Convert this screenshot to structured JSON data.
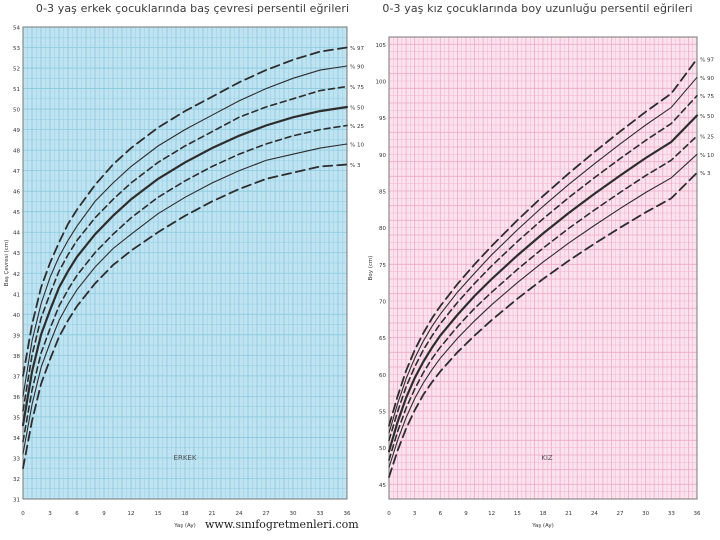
{
  "footer_url": "www.sınıfogretmenleri.com",
  "chart_data": [
    {
      "type": "line",
      "title": "0-3 yaş erkek çocuklarında baş çevresi persentil eğrileri",
      "xlabel": "Yaş (Ay)",
      "ylabel": "Baş Çevresi (cm)",
      "xlim": [
        0,
        36
      ],
      "ylim": [
        31,
        54
      ],
      "xticks": [
        0,
        3,
        6,
        9,
        12,
        15,
        18,
        21,
        24,
        27,
        30,
        33,
        36
      ],
      "yticks": [
        31,
        32,
        33,
        34,
        35,
        36,
        37,
        38,
        39,
        40,
        41,
        42,
        43,
        44,
        45,
        46,
        47,
        48,
        49,
        50,
        51,
        52,
        53,
        54
      ],
      "grid": true,
      "background": "#bfe3f1",
      "gridcolor": "#7dc3dd",
      "stamp": "ERKEK",
      "x": [
        0,
        1,
        2,
        3,
        4,
        5,
        6,
        8,
        10,
        12,
        15,
        18,
        21,
        24,
        27,
        30,
        33,
        36
      ],
      "series": [
        {
          "name": "% 97",
          "values": [
            37.0,
            39.5,
            41.3,
            42.5,
            43.5,
            44.4,
            45.1,
            46.3,
            47.3,
            48.1,
            49.1,
            49.9,
            50.6,
            51.3,
            51.9,
            52.4,
            52.8,
            53.0
          ]
        },
        {
          "name": "% 90",
          "values": [
            36.0,
            38.7,
            40.5,
            41.8,
            42.8,
            43.6,
            44.3,
            45.5,
            46.4,
            47.2,
            48.2,
            49.0,
            49.7,
            50.4,
            51.0,
            51.5,
            51.9,
            52.1
          ]
        },
        {
          "name": "% 75",
          "values": [
            35.3,
            38.0,
            39.8,
            41.0,
            42.1,
            42.9,
            43.6,
            44.7,
            45.6,
            46.4,
            47.4,
            48.2,
            48.9,
            49.6,
            50.1,
            50.5,
            50.9,
            51.1
          ]
        },
        {
          "name": "% 50",
          "values": [
            34.6,
            37.2,
            39.0,
            40.2,
            41.3,
            42.1,
            42.8,
            43.9,
            44.8,
            45.6,
            46.6,
            47.4,
            48.1,
            48.7,
            49.2,
            49.6,
            49.9,
            50.1
          ]
        },
        {
          "name": "% 25",
          "values": [
            33.8,
            36.3,
            38.1,
            39.3,
            40.4,
            41.2,
            41.9,
            43.0,
            43.9,
            44.7,
            45.7,
            46.5,
            47.2,
            47.8,
            48.3,
            48.7,
            49.0,
            49.2
          ]
        },
        {
          "name": "% 10",
          "values": [
            33.2,
            35.6,
            37.4,
            38.6,
            39.7,
            40.5,
            41.2,
            42.3,
            43.2,
            43.9,
            44.9,
            45.7,
            46.4,
            47.0,
            47.5,
            47.8,
            48.1,
            48.3
          ]
        },
        {
          "name": "% 3",
          "values": [
            32.5,
            34.8,
            36.6,
            37.8,
            38.9,
            39.7,
            40.4,
            41.5,
            42.4,
            43.1,
            44.0,
            44.8,
            45.5,
            46.1,
            46.6,
            46.9,
            47.2,
            47.3
          ]
        }
      ]
    },
    {
      "type": "line",
      "title": "0-3 yaş kız çocuklarında boy uzunluğu persentil eğrileri",
      "xlabel": "Yaş (Ay)",
      "ylabel": "Boy (cm)",
      "xlim": [
        0,
        36
      ],
      "ylim": [
        43,
        106
      ],
      "xticks": [
        0,
        3,
        6,
        9,
        12,
        15,
        18,
        21,
        24,
        27,
        30,
        33,
        36
      ],
      "yticks": [
        45,
        50,
        55,
        60,
        65,
        70,
        75,
        80,
        85,
        90,
        95,
        100,
        105
      ],
      "grid": true,
      "background": "#fbe3ee",
      "gridcolor": "#ec9cbd",
      "stamp": "KIZ",
      "x": [
        0,
        1,
        2,
        3,
        4,
        5,
        6,
        8,
        10,
        12,
        15,
        18,
        21,
        24,
        27,
        30,
        33,
        36
      ],
      "series": [
        {
          "name": "% 97",
          "values": [
            53.0,
            57.0,
            60.5,
            63.3,
            65.6,
            67.6,
            69.3,
            72.3,
            75.0,
            77.5,
            81.0,
            84.3,
            87.4,
            90.3,
            93.1,
            95.8,
            98.3,
            103.0
          ]
        },
        {
          "name": "% 90",
          "values": [
            52.0,
            56.0,
            59.4,
            62.2,
            64.5,
            66.5,
            68.2,
            71.2,
            73.8,
            76.3,
            79.7,
            82.9,
            85.9,
            88.7,
            91.4,
            94.0,
            96.4,
            100.5
          ]
        },
        {
          "name": "% 75",
          "values": [
            51.0,
            54.9,
            58.3,
            61.0,
            63.3,
            65.2,
            66.9,
            69.8,
            72.4,
            74.8,
            78.1,
            81.2,
            84.1,
            86.8,
            89.4,
            91.9,
            94.2,
            98.0
          ]
        },
        {
          "name": "% 50",
          "values": [
            49.5,
            53.5,
            56.8,
            59.5,
            61.7,
            63.6,
            65.3,
            68.1,
            70.7,
            73.0,
            76.2,
            79.2,
            82.0,
            84.6,
            87.1,
            89.5,
            91.7,
            95.3
          ]
        },
        {
          "name": "% 25",
          "values": [
            48.3,
            52.2,
            55.4,
            58.0,
            60.2,
            62.1,
            63.7,
            66.5,
            69.0,
            71.2,
            74.3,
            77.2,
            79.9,
            82.4,
            84.8,
            87.1,
            89.2,
            92.5
          ]
        },
        {
          "name": "% 10",
          "values": [
            47.3,
            51.0,
            54.1,
            56.7,
            58.8,
            60.6,
            62.2,
            64.9,
            67.3,
            69.5,
            72.5,
            75.3,
            77.9,
            80.3,
            82.6,
            84.8,
            86.8,
            90.0
          ]
        },
        {
          "name": "% 3",
          "values": [
            46.0,
            49.6,
            52.6,
            55.1,
            57.2,
            58.9,
            60.4,
            63.0,
            65.3,
            67.4,
            70.3,
            73.0,
            75.5,
            77.8,
            80.0,
            82.1,
            84.0,
            87.5
          ]
        }
      ]
    }
  ]
}
